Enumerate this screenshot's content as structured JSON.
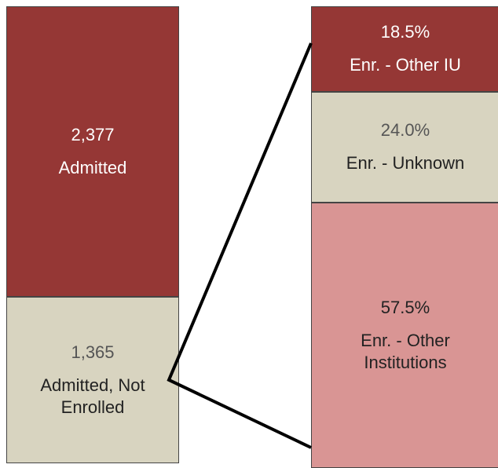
{
  "chart_data": [
    {
      "type": "stacked-bar",
      "series": [
        {
          "name": "Admitted",
          "color": "#953735",
          "values": [
            2377
          ],
          "value_labels": [
            "2,377"
          ]
        },
        {
          "name": "Admitted, Not Enrolled",
          "color": "#d8d4c0",
          "values": [
            1365
          ],
          "value_labels": [
            "1,365"
          ]
        }
      ]
    },
    {
      "type": "stacked-bar",
      "series": [
        {
          "name": "Enr. - Other IU",
          "color": "#953735",
          "values": [
            18.5
          ],
          "value_labels": [
            "18.5%"
          ]
        },
        {
          "name": "Enr. - Unknown",
          "color": "#d8d4c0",
          "values": [
            24.0
          ],
          "value_labels": [
            "24.0%"
          ]
        },
        {
          "name": "Enr. - Other Institutions",
          "color": "#d99594",
          "values": [
            57.5
          ],
          "value_labels": [
            "57.5%"
          ]
        }
      ]
    }
  ]
}
